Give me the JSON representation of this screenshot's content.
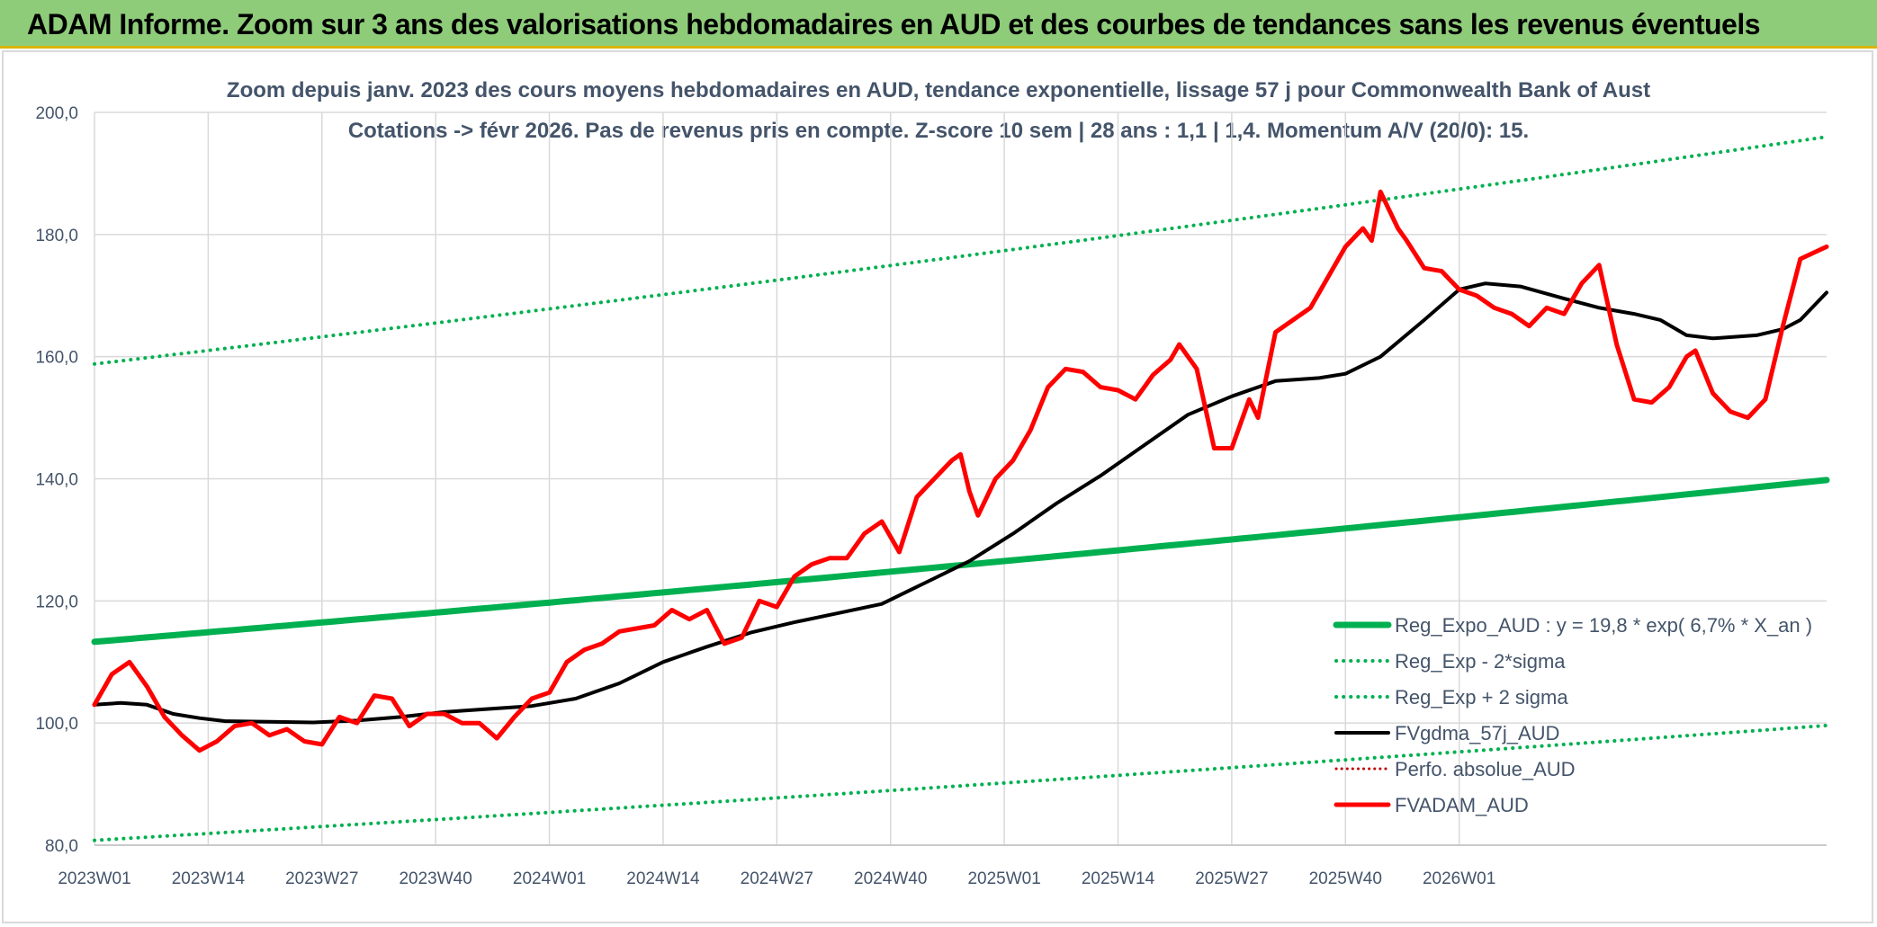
{
  "page_title": "ADAM Informe. Zoom sur 3 ans des valorisations hebdomadaires en AUD et des courbes de tendances sans les revenus éventuels",
  "colors": {
    "banner": "#8fcc7a",
    "trend": "#00b050",
    "price": "#ff0000",
    "smooth": "#000000",
    "perf": "#c00000",
    "grid": "#d9d9d9",
    "text": "#44546a"
  },
  "chart_data": {
    "type": "line",
    "title": "Zoom depuis janv. 2023 des cours moyens hebdomadaires en AUD, tendance exponentielle, lissage 57 j pour Commonwealth Bank of Aust",
    "subtitle": "Cotations -> févr 2026. Pas de revenus pris en compte. Z-score 10 sem | 28 ans : 1,1 | 1,4. Momentum A/V (20/0): 15.",
    "xlabel": "",
    "ylabel": "",
    "ylim": [
      80,
      200
    ],
    "yticks": [
      "80,0",
      "100,0",
      "120,0",
      "140,0",
      "160,0",
      "180,0",
      "200,0"
    ],
    "x_tick_labels": [
      "2023W01",
      "2023W14",
      "2023W27",
      "2023W40",
      "2024W01",
      "2024W14",
      "2024W27",
      "2024W40",
      "2025W01",
      "2025W14",
      "2025W27",
      "2025W40",
      "2026W01"
    ],
    "weeks": 166,
    "grid": true,
    "legend_position": "bottom-right",
    "series": [
      {
        "name": "Reg_Expo_AUD : y = 19,8 * exp( 6,7% *  X_an )",
        "key": "reg",
        "start": 113.3,
        "end": 139.8
      },
      {
        "name": "Reg_Exp - 2*sigma",
        "key": "reg_low",
        "start": 80.8,
        "end": 99.6
      },
      {
        "name": "Reg_Exp + 2 sigma",
        "key": "reg_high",
        "start": 158.8,
        "end": 196.0
      },
      {
        "name": "FVgdma_57j_AUD",
        "key": "smooth",
        "anchors": [
          [
            0,
            103.0
          ],
          [
            3,
            103.3
          ],
          [
            6,
            103.0
          ],
          [
            9,
            101.5
          ],
          [
            12,
            100.8
          ],
          [
            15,
            100.3
          ],
          [
            20,
            100.2
          ],
          [
            25,
            100.1
          ],
          [
            30,
            100.4
          ],
          [
            35,
            101.0
          ],
          [
            40,
            101.8
          ],
          [
            45,
            102.3
          ],
          [
            50,
            102.8
          ],
          [
            55,
            104.0
          ],
          [
            60,
            106.5
          ],
          [
            65,
            110.0
          ],
          [
            70,
            112.5
          ],
          [
            75,
            114.8
          ],
          [
            80,
            116.5
          ],
          [
            85,
            118.0
          ],
          [
            90,
            119.5
          ],
          [
            95,
            123.0
          ],
          [
            100,
            126.5
          ],
          [
            105,
            131.0
          ],
          [
            110,
            136.0
          ],
          [
            115,
            140.5
          ],
          [
            120,
            145.5
          ],
          [
            125,
            150.5
          ],
          [
            130,
            153.5
          ],
          [
            135,
            156.0
          ],
          [
            140,
            156.5
          ],
          [
            143,
            157.2
          ],
          [
            147,
            160.0
          ],
          [
            152,
            166.0
          ],
          [
            156,
            171.0
          ],
          [
            159,
            172.0
          ],
          [
            163,
            171.5
          ],
          [
            168,
            169.5
          ],
          [
            172,
            168.0
          ],
          [
            176,
            167.0
          ],
          [
            179,
            166.0
          ],
          [
            182,
            163.5
          ],
          [
            185,
            163.0
          ],
          [
            190,
            163.5
          ],
          [
            193,
            164.5
          ],
          [
            195,
            166.0
          ],
          [
            198,
            170.5
          ]
        ]
      },
      {
        "name": "Perfo. absolue_AUD",
        "key": "perf"
      },
      {
        "name": "FVADAM_AUD",
        "key": "price",
        "anchors": [
          [
            0,
            103
          ],
          [
            2,
            108
          ],
          [
            4,
            110
          ],
          [
            6,
            106
          ],
          [
            8,
            101
          ],
          [
            10,
            98
          ],
          [
            12,
            95.5
          ],
          [
            14,
            97
          ],
          [
            16,
            99.5
          ],
          [
            18,
            100
          ],
          [
            20,
            98
          ],
          [
            22,
            99
          ],
          [
            24,
            97
          ],
          [
            26,
            96.5
          ],
          [
            28,
            101
          ],
          [
            30,
            100
          ],
          [
            32,
            104.5
          ],
          [
            34,
            104
          ],
          [
            36,
            99.5
          ],
          [
            38,
            101.5
          ],
          [
            40,
            101.5
          ],
          [
            42,
            100
          ],
          [
            44,
            100
          ],
          [
            46,
            97.5
          ],
          [
            48,
            101
          ],
          [
            50,
            104
          ],
          [
            52,
            105
          ],
          [
            54,
            110
          ],
          [
            56,
            112
          ],
          [
            58,
            113
          ],
          [
            60,
            115
          ],
          [
            62,
            115.5
          ],
          [
            64,
            116
          ],
          [
            66,
            118.5
          ],
          [
            68,
            117
          ],
          [
            70,
            118.5
          ],
          [
            72,
            113
          ],
          [
            74,
            114
          ],
          [
            76,
            120
          ],
          [
            78,
            119
          ],
          [
            80,
            124
          ],
          [
            82,
            126
          ],
          [
            84,
            127
          ],
          [
            86,
            127
          ],
          [
            88,
            131
          ],
          [
            90,
            133
          ],
          [
            92,
            128
          ],
          [
            94,
            137
          ],
          [
            96,
            140
          ],
          [
            98,
            143
          ],
          [
            99,
            144
          ],
          [
            100,
            138
          ],
          [
            101,
            134
          ],
          [
            103,
            140
          ],
          [
            105,
            143
          ],
          [
            107,
            148
          ],
          [
            109,
            155
          ],
          [
            111,
            158
          ],
          [
            113,
            157.5
          ],
          [
            115,
            155
          ],
          [
            117,
            154.5
          ],
          [
            119,
            153
          ],
          [
            121,
            157
          ],
          [
            123,
            159.5
          ],
          [
            124,
            162
          ],
          [
            126,
            158
          ],
          [
            128,
            145
          ],
          [
            130,
            145
          ],
          [
            132,
            153
          ],
          [
            133,
            150
          ],
          [
            135,
            164
          ],
          [
            137,
            166
          ],
          [
            139,
            168
          ],
          [
            141,
            173
          ],
          [
            143,
            178
          ],
          [
            145,
            181
          ],
          [
            146,
            179
          ],
          [
            147,
            187
          ],
          [
            148,
            184
          ],
          [
            149,
            181
          ],
          [
            150,
            179
          ],
          [
            152,
            174.5
          ],
          [
            154,
            174
          ],
          [
            156,
            171
          ],
          [
            158,
            170
          ],
          [
            160,
            168
          ],
          [
            162,
            167
          ],
          [
            164,
            165
          ],
          [
            166,
            168
          ],
          [
            168,
            167
          ],
          [
            170,
            172
          ],
          [
            172,
            175
          ],
          [
            174,
            162
          ],
          [
            176,
            153
          ],
          [
            178,
            152.5
          ],
          [
            180,
            155
          ],
          [
            182,
            160
          ],
          [
            183,
            161
          ],
          [
            185,
            154
          ],
          [
            187,
            151
          ],
          [
            189,
            150
          ],
          [
            191,
            153
          ],
          [
            193,
            165
          ],
          [
            195,
            176
          ],
          [
            198,
            178
          ]
        ]
      }
    ]
  }
}
